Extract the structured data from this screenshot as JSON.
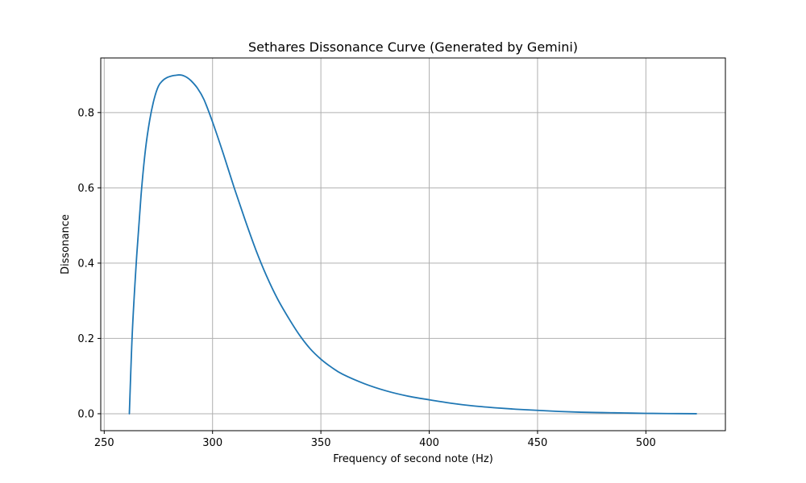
{
  "chart_data": {
    "type": "line",
    "title": "Sethares Dissonance Curve (Generated by Gemini)",
    "xlabel": "Frequency of second note (Hz)",
    "ylabel": "Dissonance",
    "xlim": [
      248.4,
      536.7
    ],
    "ylim": [
      -0.045,
      0.945
    ],
    "xticks": [
      250,
      300,
      350,
      400,
      450,
      500
    ],
    "xtick_labels": [
      "250",
      "300",
      "350",
      "400",
      "450",
      "500"
    ],
    "yticks": [
      0.0,
      0.2,
      0.4,
      0.6,
      0.8
    ],
    "ytick_labels": [
      "0.0",
      "0.2",
      "0.4",
      "0.6",
      "0.8"
    ],
    "grid": true,
    "colors": {
      "series": "#1f77b4",
      "grid": "#b0b0b0",
      "frame": "#000000"
    },
    "series": [
      {
        "x": [
          261.6,
          263,
          265,
          267,
          269,
          271,
          273,
          275,
          277,
          279,
          281,
          283,
          284.5,
          286,
          288,
          290,
          293,
          296,
          300,
          305,
          310,
          315,
          320,
          325,
          330,
          335,
          340,
          345,
          350,
          355,
          360,
          370,
          380,
          390,
          400,
          410,
          420,
          430,
          440,
          450,
          460,
          470,
          480,
          490,
          500,
          510,
          523.3
        ],
        "y": [
          0.0,
          0.22,
          0.42,
          0.58,
          0.7,
          0.78,
          0.835,
          0.87,
          0.885,
          0.893,
          0.897,
          0.899,
          0.9,
          0.899,
          0.894,
          0.885,
          0.865,
          0.835,
          0.775,
          0.69,
          0.6,
          0.515,
          0.435,
          0.365,
          0.305,
          0.255,
          0.21,
          0.173,
          0.145,
          0.123,
          0.105,
          0.08,
          0.061,
          0.047,
          0.037,
          0.028,
          0.021,
          0.016,
          0.012,
          0.009,
          0.006,
          0.004,
          0.003,
          0.002,
          0.001,
          0.0005,
          0.0
        ]
      }
    ]
  }
}
